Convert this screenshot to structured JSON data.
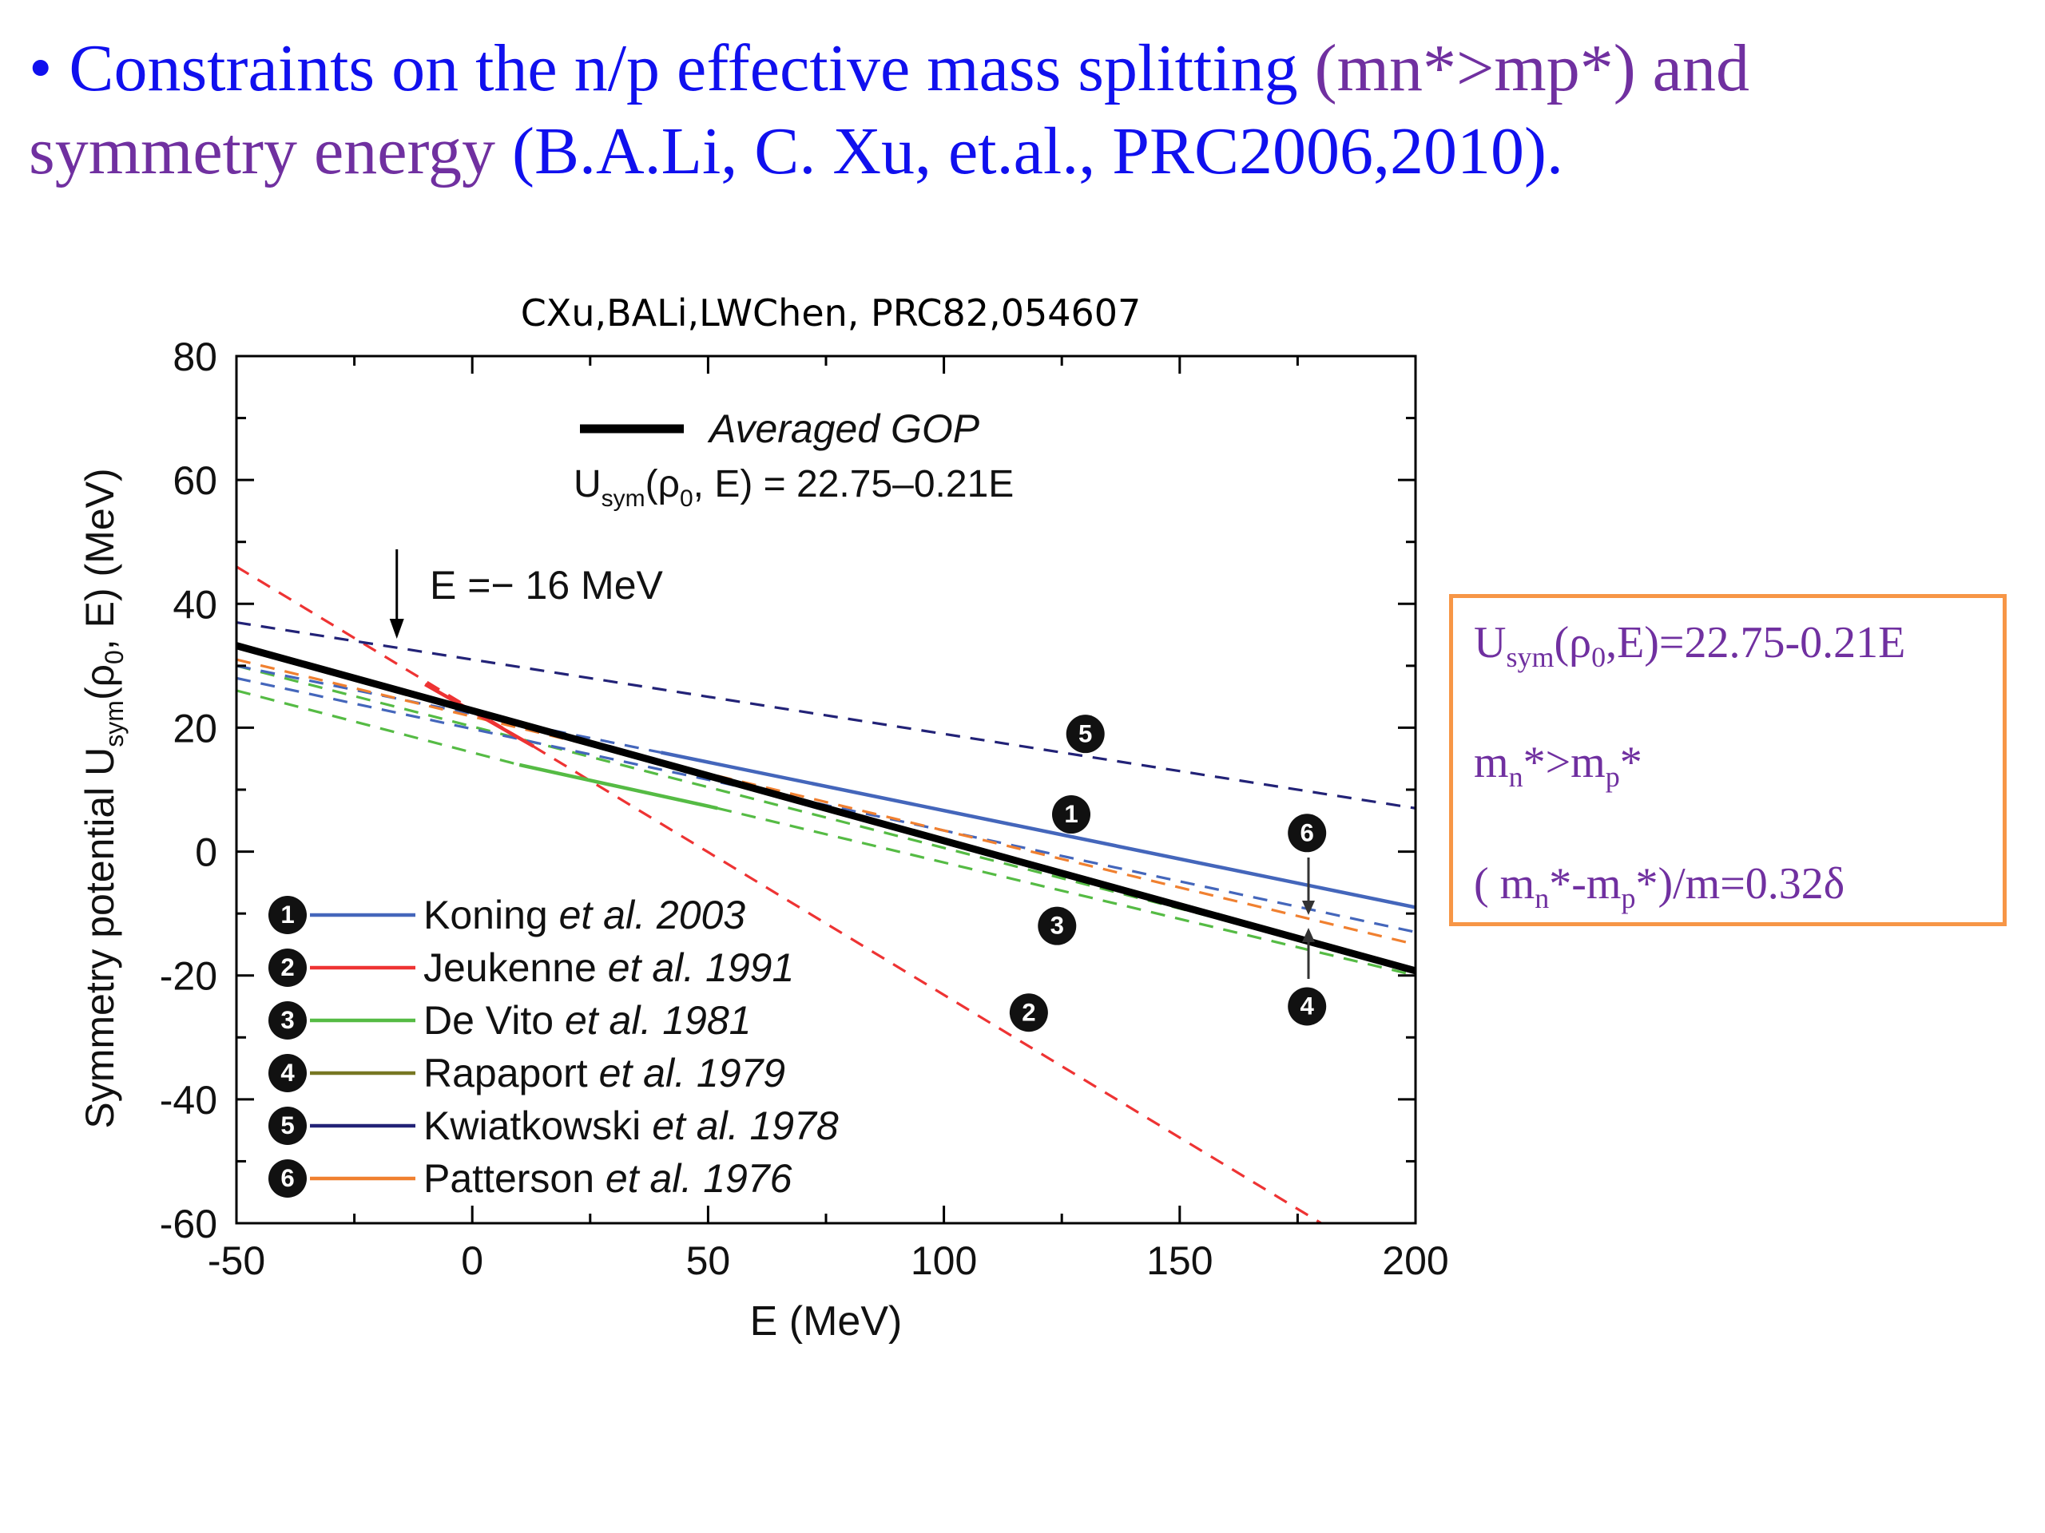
{
  "slide": {
    "bullet": "•",
    "line1_blue": "Constraints on the n/p effective mass splitting",
    "line1_purple": "(mn*>mp*)  and",
    "line2_purple": "symmetry energy",
    "line2_blue": "(B.A.Li, C. Xu, et.al., PRC2006,2010)."
  },
  "info_box": {
    "row1": {
      "U": "U",
      "sub": "sym",
      "rest": "(ρ",
      "sub0": "0",
      "tail": ",E)=22.75-0.21E"
    },
    "row2": {
      "m1": "m",
      "n": "n",
      "mid": "*>m",
      "p": "p",
      "star": "*"
    },
    "row3": {
      "open": "( m",
      "n": "n",
      "mid": "*-m",
      "p": "p",
      "tail": "*)/m=0.32δ"
    },
    "border_color": "#f79646",
    "text_color": "#7030a0"
  },
  "chart_data": {
    "type": "line",
    "title": "CXu,BALi,LWChen, PRC82,054607",
    "xlabel": "E (MeV)",
    "ylabel_parts": {
      "pre": "Symmetry potential U",
      "sub": "sym",
      "mid": "(ρ",
      "sub0": "0",
      "post": ", E) (MeV)"
    },
    "xlim": [
      -50,
      200
    ],
    "ylim": [
      -60,
      80
    ],
    "xticks": [
      -50,
      0,
      50,
      100,
      150,
      200
    ],
    "yticks": [
      80,
      60,
      40,
      20,
      0,
      -20,
      -40,
      -60
    ],
    "annotation": {
      "text": "E =− 16 MeV",
      "x": -16
    },
    "gop_legend": {
      "name": "Averaged GOP",
      "eq_U": "U",
      "eq_sub": "sym",
      "eq_mid": "(ρ",
      "eq_sub0": "0",
      "eq_tail": ", E) = 22.75–0.21E"
    },
    "gop": {
      "color": "#000000",
      "intercept": 22.75,
      "slope": -0.21
    },
    "series": [
      {
        "id": "1",
        "name": "Koning",
        "etal": "et al.",
        "year": "2003",
        "color": "#4466bb",
        "dashed": [
          {
            "x": [
              -50,
              40
            ],
            "y": [
              30.0,
              16.0
            ]
          }
        ],
        "solid": [
          {
            "x": [
              40,
              200
            ],
            "y": [
              16.0,
              -9.0
            ]
          }
        ],
        "marker": {
          "x": 127,
          "y": 6
        }
      },
      {
        "id": "2",
        "name": "Jeukenne",
        "etal": "et al.",
        "year": "1991",
        "color": "#ee3333",
        "dashed": [
          {
            "x": [
              -50,
              180
            ],
            "y": [
              46.0,
              -60.0
            ]
          }
        ],
        "solid": [
          {
            "x": [
              -10,
              13
            ],
            "y": [
              27.0,
              17.0
            ]
          }
        ],
        "marker": {
          "x": 118,
          "y": -26
        }
      },
      {
        "id": "3",
        "name": "De Vito",
        "etal": "et al.",
        "year": "1981",
        "color": "#55bb44",
        "dashed": [
          {
            "x": [
              -50,
              10
            ],
            "y": [
              26.0,
              14.0
            ]
          },
          {
            "x": [
              52,
              200
            ],
            "y": [
              7.0,
              -20.0
            ]
          }
        ],
        "solid": [
          {
            "x": [
              10,
              52
            ],
            "y": [
              14.0,
              7.0
            ]
          }
        ],
        "marker": {
          "x": 124,
          "y": -12
        }
      },
      {
        "id": "4",
        "name": "Rapaport",
        "etal": "et al.",
        "year": "1979",
        "color": "#777722",
        "dashed": [],
        "solid": [],
        "marker": {
          "x": 177,
          "y": -25
        }
      },
      {
        "id": "5",
        "name": "Kwiatkowski",
        "etal": "et al.",
        "year": "1978",
        "color": "#222277",
        "dashed": [
          {
            "x": [
              -50,
              200
            ],
            "y": [
              37.0,
              7.0
            ]
          }
        ],
        "solid": [],
        "marker": {
          "x": 130,
          "y": 19
        }
      },
      {
        "id": "6",
        "name": "Patterson",
        "etal": "et al.",
        "year": "1976",
        "color": "#f08030",
        "dashed": [
          {
            "x": [
              -50,
              200
            ],
            "y": [
              31.0,
              -15.0
            ]
          }
        ],
        "solid": [],
        "marker": {
          "x": 177,
          "y": 3
        }
      }
    ],
    "extra_dashed": [
      {
        "color": "#55bb44",
        "x": [
          -50,
          200
        ],
        "y": [
          30.0,
          -19.0
        ]
      },
      {
        "color": "#4466bb",
        "x": [
          -50,
          200
        ],
        "y": [
          28.0,
          -13.0
        ]
      }
    ],
    "grid": false,
    "legend_position": "bottom-left"
  }
}
